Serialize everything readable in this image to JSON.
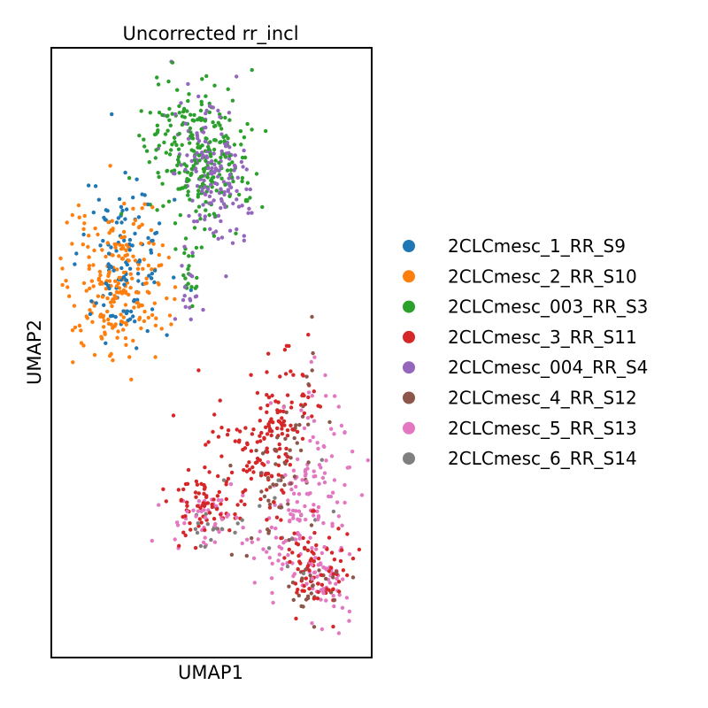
{
  "chart_data": {
    "type": "scatter",
    "title": "Uncorrected rr_incl",
    "xlabel": "UMAP1",
    "ylabel": "UMAP2",
    "ticks": "none",
    "legend_position": "right",
    "series": [
      {
        "name": "2CLCmesc_1_RR_S9",
        "color": "#1f77b4"
      },
      {
        "name": "2CLCmesc_2_RR_S10",
        "color": "#ff7f0e"
      },
      {
        "name": "2CLCmesc_003_RR_S3",
        "color": "#2ca02c"
      },
      {
        "name": "2CLCmesc_3_RR_S11",
        "color": "#d62728"
      },
      {
        "name": "2CLCmesc_004_RR_S4",
        "color": "#9467bd"
      },
      {
        "name": "2CLCmesc_4_RR_S12",
        "color": "#8c564b"
      },
      {
        "name": "2CLCmesc_5_RR_S13",
        "color": "#e377c2"
      },
      {
        "name": "2CLCmesc_6_RR_S14",
        "color": "#7f7f7f"
      }
    ]
  }
}
